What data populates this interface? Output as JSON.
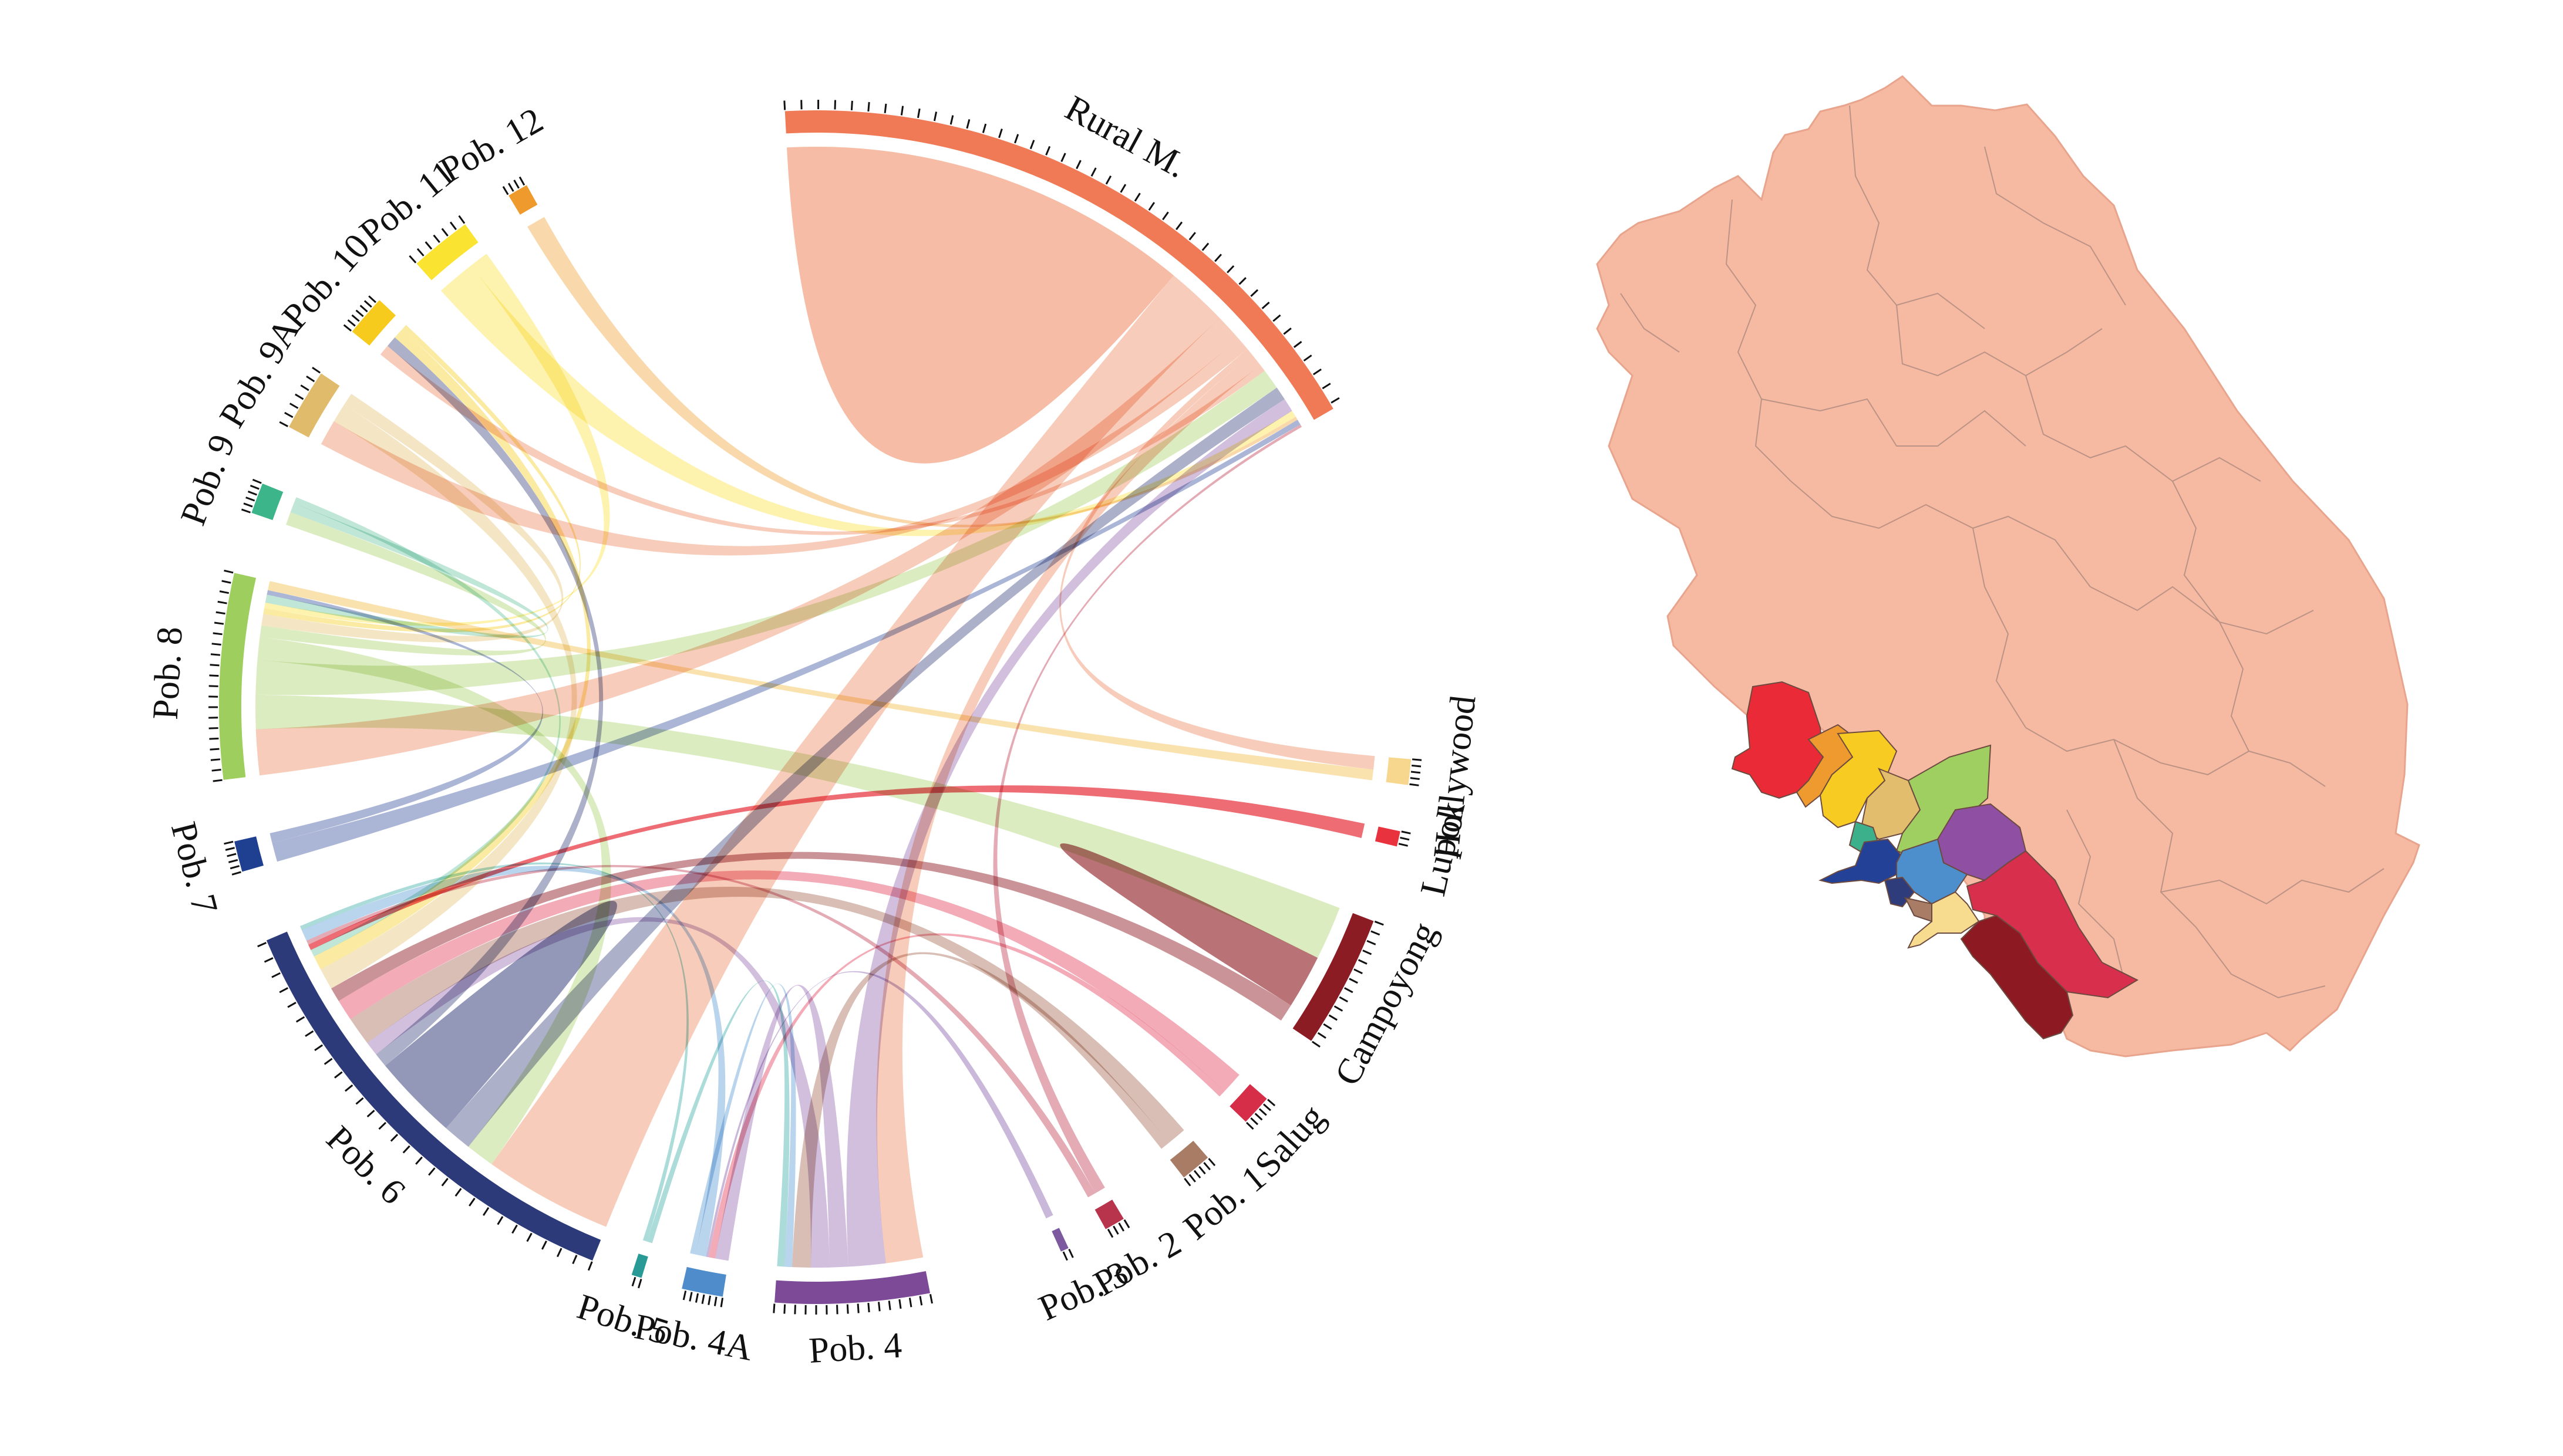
{
  "chord": {
    "segments": [
      {
        "id": "rural",
        "label": "Rural M.",
        "color": "#ef7a55",
        "inner": "#f5b8a0"
      },
      {
        "id": "hollywood",
        "label": "Hollywood",
        "color": "#f7d78d",
        "inner": "#f7d78d"
      },
      {
        "id": "lupok",
        "label": "Lupok",
        "color": "#e8333f",
        "inner": "#e8333f"
      },
      {
        "id": "campoyong",
        "label": "Campoyong",
        "color": "#8c1c24",
        "inner": "#b56a6f"
      },
      {
        "id": "salug",
        "label": "Salug",
        "color": "#d62d48",
        "inner": "#ee8a9b"
      },
      {
        "id": "pob1",
        "label": "Pob. 1",
        "color": "#a97c66",
        "inner": "#c9a597"
      },
      {
        "id": "pob2",
        "label": "Pob. 2",
        "color": "#b8344c",
        "inner": "#d98a99"
      },
      {
        "id": "pob3",
        "label": "Pob. 3",
        "color": "#7d5aa0",
        "inner": "#b59ccc"
      },
      {
        "id": "pob4",
        "label": "Pob. 4",
        "color": "#7d4a97",
        "inner": "#bfa6d0"
      },
      {
        "id": "pob4a",
        "label": "Pob. 4A",
        "color": "#4e8ccb",
        "inner": "#9ec3e6"
      },
      {
        "id": "pob5",
        "label": "Pob. 5",
        "color": "#2a9a96",
        "inner": "#8bcfca"
      },
      {
        "id": "pob6",
        "label": "Pob. 6",
        "color": "#2d3a7a",
        "inner": "#8d92b4"
      },
      {
        "id": "pob7",
        "label": "Pob. 7",
        "color": "#1f3f91",
        "inner": "#8a9ac7"
      },
      {
        "id": "pob8",
        "label": "Pob. 8",
        "color": "#9dce5e",
        "inner": "#cfe5a9"
      },
      {
        "id": "pob9",
        "label": "Pob. 9",
        "color": "#3db58b",
        "inner": "#a6dcc7"
      },
      {
        "id": "pob9a",
        "label": "Pob. 9A",
        "color": "#e0bb6c",
        "inner": "#f0dcaf"
      },
      {
        "id": "pob10",
        "label": "Pob. 10",
        "color": "#f7cb1e",
        "inner": "#f9e27e"
      },
      {
        "id": "pob11",
        "label": "Pob. 11",
        "color": "#fbe332",
        "inner": "#fcee8f"
      },
      {
        "id": "pob12",
        "label": "Pob. 12",
        "color": "#ef9a2d",
        "inner": "#f6c98c"
      }
    ],
    "flows": [
      {
        "from": "rural",
        "to": "rural",
        "value": 30
      },
      {
        "from": "rural",
        "to": "pob6",
        "value": 9
      },
      {
        "from": "rural",
        "to": "pob8",
        "value": 4
      },
      {
        "from": "rural",
        "to": "pob9a",
        "value": 2
      },
      {
        "from": "rural",
        "to": "hollywood",
        "value": 1
      },
      {
        "from": "rural",
        "to": "pob4",
        "value": 2
      },
      {
        "from": "rural",
        "to": "pob10",
        "value": 1
      },
      {
        "from": "pob8",
        "to": "campoyong",
        "value": 3
      },
      {
        "from": "pob8",
        "to": "rural",
        "value": 3
      },
      {
        "from": "pob8",
        "to": "pob6",
        "value": 2
      },
      {
        "from": "pob8",
        "to": "pob9",
        "value": 1
      },
      {
        "from": "pob6",
        "to": "rural",
        "value": 2
      },
      {
        "from": "pob6",
        "to": "pob6",
        "value": 3
      },
      {
        "from": "pob6",
        "to": "pob10",
        "value": 1
      },
      {
        "from": "pob4",
        "to": "rural",
        "value": 2
      },
      {
        "from": "pob4",
        "to": "pob4a",
        "value": 1
      },
      {
        "from": "pob4",
        "to": "pob6",
        "value": 1
      },
      {
        "from": "pob1",
        "to": "pob6",
        "value": 2
      },
      {
        "from": "pob1",
        "to": "pob4",
        "value": 1
      },
      {
        "from": "salug",
        "to": "pob6",
        "value": 1.5
      },
      {
        "from": "salug",
        "to": "pob4a",
        "value": 0.5
      },
      {
        "from": "campoyong",
        "to": "campoyong",
        "value": 1.5
      },
      {
        "from": "campoyong",
        "to": "pob6",
        "value": 1
      },
      {
        "from": "pob9a",
        "to": "pob6",
        "value": 1.5
      },
      {
        "from": "pob9a",
        "to": "pob8",
        "value": 1
      },
      {
        "from": "pob10",
        "to": "pob6",
        "value": 1
      },
      {
        "from": "pob10",
        "to": "pob8",
        "value": 0.5
      },
      {
        "from": "pob11",
        "to": "rural",
        "value": 1
      },
      {
        "from": "pob11",
        "to": "pob8",
        "value": 0.5
      },
      {
        "from": "pob12",
        "to": "rural",
        "value": 0.5
      },
      {
        "from": "pob9",
        "to": "pob8",
        "value": 0.7
      },
      {
        "from": "pob9",
        "to": "pob6",
        "value": 0.5
      },
      {
        "from": "pob7",
        "to": "rural",
        "value": 0.8
      },
      {
        "from": "pob7",
        "to": "pob8",
        "value": 0.4
      },
      {
        "from": "hollywood",
        "to": "pob8",
        "value": 0.8
      },
      {
        "from": "lupok",
        "to": "pob6",
        "value": 0.4
      },
      {
        "from": "pob2",
        "to": "rural",
        "value": 0.4
      },
      {
        "from": "pob2",
        "to": "pob6",
        "value": 0.3
      },
      {
        "from": "pob3",
        "to": "pob4a",
        "value": 0.2
      },
      {
        "from": "pob4a",
        "to": "pob6",
        "value": 0.8
      },
      {
        "from": "pob4a",
        "to": "pob4",
        "value": 0.4
      },
      {
        "from": "pob5",
        "to": "pob4",
        "value": 0.4
      },
      {
        "from": "pob5",
        "to": "pob6",
        "value": 0.3
      }
    ]
  },
  "map": {
    "outline_color": "#f6b9a1",
    "border_color": "#a8877d",
    "district_colors": [
      "#ea2a36",
      "#ee9a2e",
      "#f7cb22",
      "#e2bd6d",
      "#9fcf61",
      "#3cb08a",
      "#234196",
      "#8f4fa2",
      "#4d8ecd",
      "#2f3c7c",
      "#d8304c",
      "#f7dc8f",
      "#8d1a22",
      "#a97c66"
    ]
  }
}
